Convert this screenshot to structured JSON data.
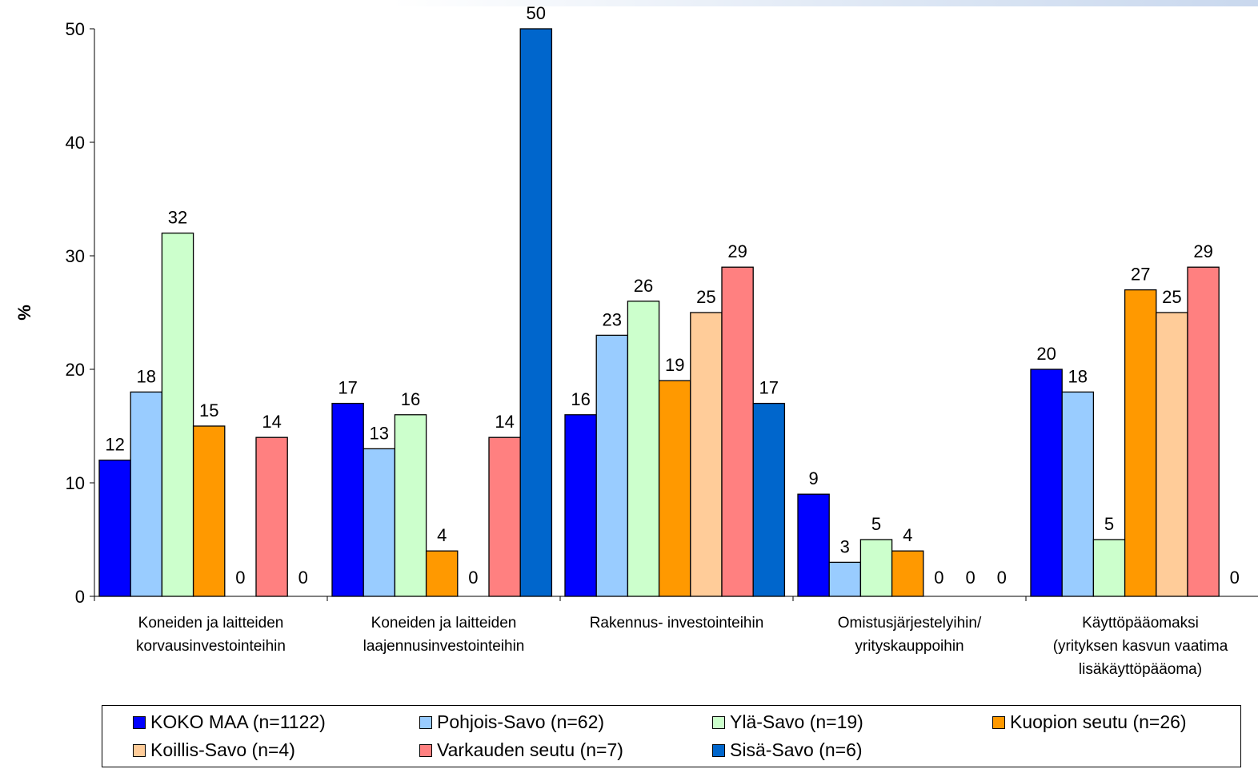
{
  "chart_data": {
    "type": "bar",
    "ylabel": "%",
    "ylim": [
      0,
      50
    ],
    "yticks": [
      0,
      10,
      20,
      30,
      40,
      50
    ],
    "grid": false,
    "legend_position": "bottom",
    "categories": [
      [
        "Koneiden ja laitteiden",
        "korvausinvestointeihin"
      ],
      [
        "Koneiden ja laitteiden",
        "laajennusinvestointeihin"
      ],
      [
        "Rakennus- investointeihin"
      ],
      [
        "Omistusjärjestelyihin/",
        "yrityskauppoihin"
      ],
      [
        "Käyttöpääomaksi",
        "(yrityksen kasvun vaatima",
        "lisäkäyttöpääoma)"
      ]
    ],
    "series": [
      {
        "name": "KOKO MAA (n=1122)",
        "color": "#0000ff",
        "values": [
          12,
          17,
          16,
          9,
          20
        ]
      },
      {
        "name": "Pohjois-Savo (n=62)",
        "color": "#99ccff",
        "values": [
          18,
          13,
          23,
          3,
          18
        ]
      },
      {
        "name": "Ylä-Savo (n=19)",
        "color": "#ccffcc",
        "values": [
          32,
          16,
          26,
          5,
          5
        ]
      },
      {
        "name": "Kuopion seutu (n=26)",
        "color": "#ff9900",
        "values": [
          15,
          4,
          19,
          4,
          27
        ]
      },
      {
        "name": "Koillis-Savo (n=4)",
        "color": "#ffcc99",
        "values": [
          0,
          0,
          25,
          0,
          25
        ]
      },
      {
        "name": "Varkauden seutu (n=7)",
        "color": "#ff8080",
        "values": [
          14,
          14,
          29,
          0,
          29
        ]
      },
      {
        "name": "Sisä-Savo (n=6)",
        "color": "#0066cc",
        "values": [
          0,
          50,
          17,
          0,
          0
        ]
      }
    ]
  }
}
